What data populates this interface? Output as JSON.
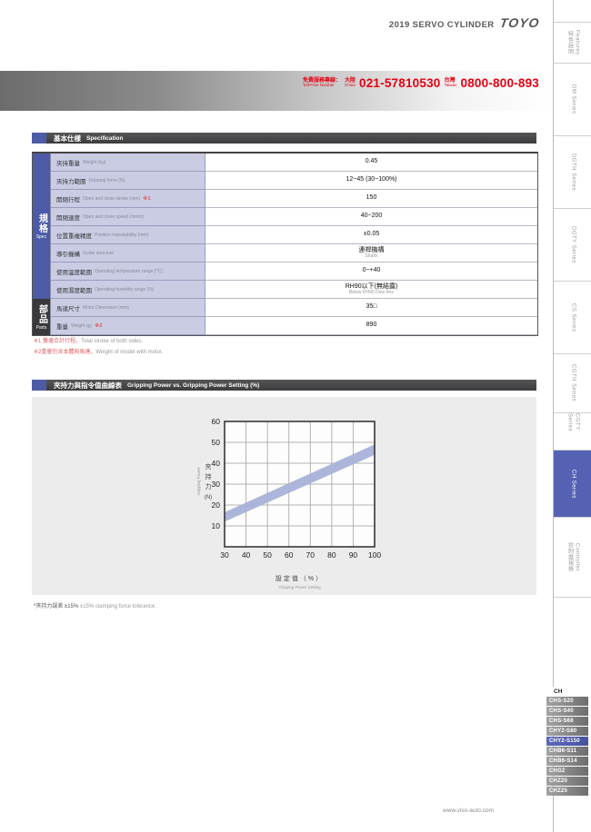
{
  "header": {
    "title": "2019 SERVO CYLINDER",
    "logo": "TOYO"
  },
  "banner": {
    "service_zh": "免費服務專線：",
    "service_en": "Toll-Free Number",
    "china_zh": "大陸",
    "china_en": "China",
    "china_phone": "021-57810530",
    "taiwan_zh": "台灣",
    "taiwan_en": "Taiwan",
    "taiwan_phone": "0800-800-893"
  },
  "spec_section": {
    "title_zh": "基本仕樣",
    "title_en": "Specification"
  },
  "spec_table": {
    "groups": [
      {
        "zh": "規格",
        "en": "Spec"
      },
      {
        "zh": "部品",
        "en": "Parts"
      }
    ],
    "rows": [
      {
        "zh": "夾持重量",
        "en": "Weight (kg)",
        "note": "",
        "value": "0.45",
        "value_sub": "",
        "group": 0
      },
      {
        "zh": "夾持力範圍",
        "en": "Gripping force (N)",
        "note": "",
        "value": "12~45 (30~100%)",
        "value_sub": "",
        "group": 0
      },
      {
        "zh": "開閉行程",
        "en": "Open and close stroke (mm)",
        "note": "※1",
        "value": "150",
        "value_sub": "",
        "group": 0
      },
      {
        "zh": "開閉速度",
        "en": "Open and close speed (mm/s)",
        "note": "",
        "value": "40~200",
        "value_sub": "",
        "group": 0
      },
      {
        "zh": "位置重複精度",
        "en": "Position repeatability (mm)",
        "note": "",
        "value": "±0.05",
        "value_sub": "",
        "group": 0
      },
      {
        "zh": "導引機構",
        "en": "Guide structure",
        "note": "",
        "value": "連桿機構",
        "value_sub": "Shafts",
        "group": 0
      },
      {
        "zh": "使用溫度範圍",
        "en": "Operating temperature range (°C)",
        "note": "",
        "value": "0~+40",
        "value_sub": "",
        "group": 0
      },
      {
        "zh": "使用濕度範圍",
        "en": "Operating humidity range (%)",
        "note": "",
        "value": "RH90以下(無結露)",
        "value_sub": "Below RH90 Dew free",
        "group": 0
      },
      {
        "zh": "馬達尺寸",
        "en": "Motor Dimension (mm)",
        "note": "",
        "value": "35□",
        "value_sub": "",
        "group": 1
      },
      {
        "zh": "重量",
        "en": "Weight (g)",
        "note": "※2",
        "value": "890",
        "value_sub": "",
        "group": 1
      }
    ],
    "footnotes": [
      {
        "zh": "※1 雙邊合計行程。",
        "en": "Total stroke of both sides."
      },
      {
        "zh": "※2重量包含本體與馬達。",
        "en": "Weight of model with motor."
      }
    ]
  },
  "chart_section": {
    "title_zh": "夾持力與指令值曲線表",
    "title_en": "Gripping Power vs. Gripping Power Setting (%)"
  },
  "chart_data": {
    "type": "area",
    "title": "Gripping Power vs. Gripping Power Setting (%)",
    "xlabel_zh": "設定值（%）",
    "xlabel_en": "Gripping Power Setting",
    "ylabel_zh": "夾持力",
    "ylabel_unit": "(N)",
    "ylabel_en": "Gripping Power",
    "xlim": [
      30,
      100
    ],
    "ylim": [
      0,
      60
    ],
    "xticks": [
      30,
      40,
      50,
      60,
      70,
      80,
      90,
      100
    ],
    "yticks": [
      10,
      20,
      30,
      40,
      50,
      60
    ],
    "grid": true,
    "band": {
      "x": [
        30,
        100
      ],
      "upper": [
        16.5,
        49
      ],
      "lower": [
        12,
        44
      ]
    },
    "band_color": "#a9b2d8"
  },
  "chart_footnote": {
    "zh": "*夾持力誤差:±15%",
    "en": "±15% clamping force tolerance ."
  },
  "sidebar": {
    "tabs": [
      {
        "zh": "特色說明",
        "en": "Features",
        "active": false
      },
      {
        "zh": "",
        "en": "DM Series",
        "active": false
      },
      {
        "zh": "",
        "en": "DGTH Series",
        "active": false
      },
      {
        "zh": "",
        "en": "DGTY Series",
        "active": false
      },
      {
        "zh": "",
        "en": "CS Series",
        "active": false
      },
      {
        "zh": "",
        "en": "CGTH Series",
        "active": false
      },
      {
        "zh": "",
        "en": "CGTY Series",
        "active": false
      },
      {
        "zh": "",
        "en": "CH Series",
        "active": true
      },
      {
        "zh": "控制器規格",
        "en": "Controller",
        "active": false
      }
    ],
    "models_header": "CH",
    "models": [
      {
        "label": "CHS-S20",
        "active": false
      },
      {
        "label": "CHS-S40",
        "active": false
      },
      {
        "label": "CHS-S68",
        "active": false
      },
      {
        "label": "CHY2-S80",
        "active": false
      },
      {
        "label": "CHY2-S150",
        "active": true
      },
      {
        "label": "CHB6-S11",
        "active": false
      },
      {
        "label": "CHB6-S14",
        "active": false
      },
      {
        "label": "CHG2",
        "active": false
      },
      {
        "label": "CHZ20",
        "active": false
      },
      {
        "label": "CHZ25",
        "active": false
      }
    ]
  },
  "footer": {
    "url": "www.viso-auto.com"
  },
  "colors": {
    "accent_blue": "#4d5ba6",
    "active_tab_blue": "#5562b4",
    "label_lavender": "#cacce4",
    "bar_dark": "#454547",
    "phone_red": "#e60012",
    "band_blue": "#a9b2d8"
  }
}
